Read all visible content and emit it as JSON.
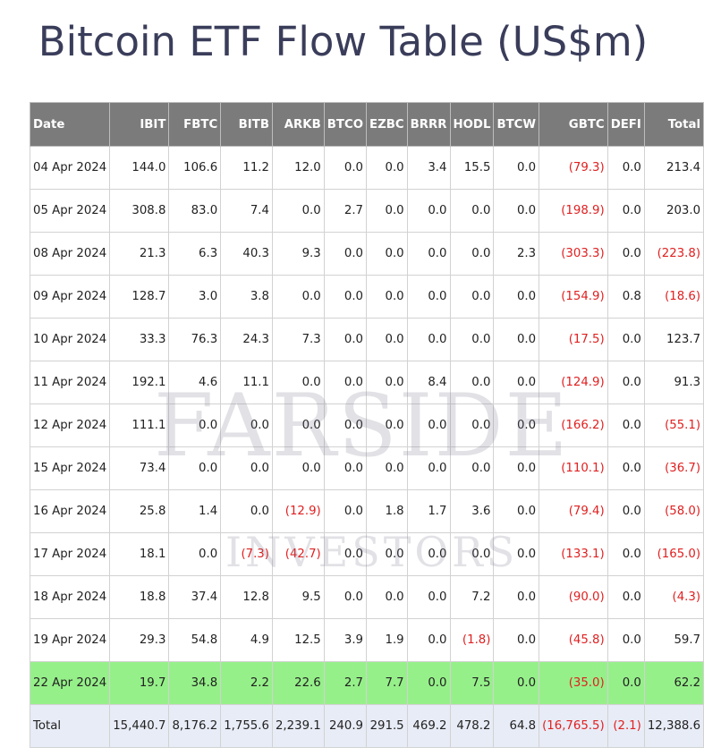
{
  "title": "Bitcoin ETF Flow Table (US$m)",
  "watermark": {
    "line1": "FARSIDE",
    "line2": "INVESTORS"
  },
  "colors": {
    "header_bg": "#7b7b7b",
    "highlight_row": "#96f08a",
    "total_row": "#e8ecf6",
    "negative": "#e02020",
    "title": "#3a3d5a"
  },
  "table": {
    "columns": [
      "Date",
      "IBIT",
      "FBTC",
      "BITB",
      "ARKB",
      "BTCO",
      "EZBC",
      "BRRR",
      "HODL",
      "BTCW",
      "GBTC",
      "DEFI",
      "Total"
    ],
    "rows": [
      [
        "04 Apr 2024",
        "144.0",
        "106.6",
        "11.2",
        "12.0",
        "0.0",
        "0.0",
        "3.4",
        "15.5",
        "0.0",
        "(79.3)",
        "0.0",
        "213.4"
      ],
      [
        "05 Apr 2024",
        "308.8",
        "83.0",
        "7.4",
        "0.0",
        "2.7",
        "0.0",
        "0.0",
        "0.0",
        "0.0",
        "(198.9)",
        "0.0",
        "203.0"
      ],
      [
        "08 Apr 2024",
        "21.3",
        "6.3",
        "40.3",
        "9.3",
        "0.0",
        "0.0",
        "0.0",
        "0.0",
        "2.3",
        "(303.3)",
        "0.0",
        "(223.8)"
      ],
      [
        "09 Apr 2024",
        "128.7",
        "3.0",
        "3.8",
        "0.0",
        "0.0",
        "0.0",
        "0.0",
        "0.0",
        "0.0",
        "(154.9)",
        "0.8",
        "(18.6)"
      ],
      [
        "10 Apr 2024",
        "33.3",
        "76.3",
        "24.3",
        "7.3",
        "0.0",
        "0.0",
        "0.0",
        "0.0",
        "0.0",
        "(17.5)",
        "0.0",
        "123.7"
      ],
      [
        "11 Apr 2024",
        "192.1",
        "4.6",
        "11.1",
        "0.0",
        "0.0",
        "0.0",
        "8.4",
        "0.0",
        "0.0",
        "(124.9)",
        "0.0",
        "91.3"
      ],
      [
        "12 Apr 2024",
        "111.1",
        "0.0",
        "0.0",
        "0.0",
        "0.0",
        "0.0",
        "0.0",
        "0.0",
        "0.0",
        "(166.2)",
        "0.0",
        "(55.1)"
      ],
      [
        "15 Apr 2024",
        "73.4",
        "0.0",
        "0.0",
        "0.0",
        "0.0",
        "0.0",
        "0.0",
        "0.0",
        "0.0",
        "(110.1)",
        "0.0",
        "(36.7)"
      ],
      [
        "16 Apr 2024",
        "25.8",
        "1.4",
        "0.0",
        "(12.9)",
        "0.0",
        "1.8",
        "1.7",
        "3.6",
        "0.0",
        "(79.4)",
        "0.0",
        "(58.0)"
      ],
      [
        "17 Apr 2024",
        "18.1",
        "0.0",
        "(7.3)",
        "(42.7)",
        "0.0",
        "0.0",
        "0.0",
        "0.0",
        "0.0",
        "(133.1)",
        "0.0",
        "(165.0)"
      ],
      [
        "18 Apr 2024",
        "18.8",
        "37.4",
        "12.8",
        "9.5",
        "0.0",
        "0.0",
        "0.0",
        "7.2",
        "0.0",
        "(90.0)",
        "0.0",
        "(4.3)"
      ],
      [
        "19 Apr 2024",
        "29.3",
        "54.8",
        "4.9",
        "12.5",
        "3.9",
        "1.9",
        "0.0",
        "(1.8)",
        "0.0",
        "(45.8)",
        "0.0",
        "59.7"
      ],
      [
        "22 Apr 2024",
        "19.7",
        "34.8",
        "2.2",
        "22.6",
        "2.7",
        "7.7",
        "0.0",
        "7.5",
        "0.0",
        "(35.0)",
        "0.0",
        "62.2"
      ]
    ],
    "highlight_row_index": 12,
    "total_row": [
      "Total",
      "15,440.7",
      "8,176.2",
      "1,755.6",
      "2,239.1",
      "240.9",
      "291.5",
      "469.2",
      "478.2",
      "64.8",
      "(16,765.5)",
      "(2.1)",
      "12,388.6"
    ]
  }
}
